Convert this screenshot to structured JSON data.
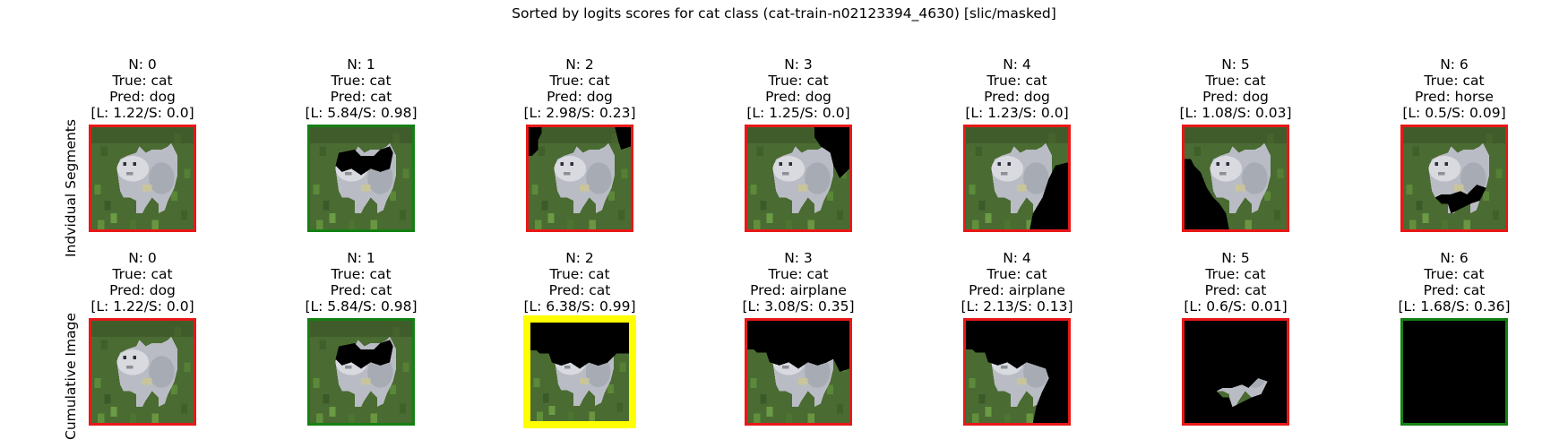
{
  "figure": {
    "title": "Sorted by logits scores for cat class (cat-train-n02123394_4630) [slic/masked]"
  },
  "rows": [
    {
      "label": "Indvidual Segments",
      "panels": [
        {
          "n": "N: 0",
          "true": "True: cat",
          "pred": "Pred: dog",
          "score": "[L: 1.22/S: 0.0]",
          "frame_color": "#e81818",
          "mask": "none"
        },
        {
          "n": "N: 1",
          "true": "True: cat",
          "pred": "Pred: cat",
          "score": "[L: 5.84/S: 0.98]",
          "frame_color": "#148014",
          "mask": "seg1"
        },
        {
          "n": "N: 2",
          "true": "True: cat",
          "pred": "Pred: dog",
          "score": "[L: 2.98/S: 0.23]",
          "frame_color": "#e81818",
          "mask": "seg2"
        },
        {
          "n": "N: 3",
          "true": "True: cat",
          "pred": "Pred: dog",
          "score": "[L: 1.25/S: 0.0]",
          "frame_color": "#e81818",
          "mask": "seg3"
        },
        {
          "n": "N: 4",
          "true": "True: cat",
          "pred": "Pred: dog",
          "score": "[L: 1.23/S: 0.0]",
          "frame_color": "#e81818",
          "mask": "seg4"
        },
        {
          "n": "N: 5",
          "true": "True: cat",
          "pred": "Pred: dog",
          "score": "[L: 1.08/S: 0.03]",
          "frame_color": "#e81818",
          "mask": "seg5"
        },
        {
          "n": "N: 6",
          "true": "True: cat",
          "pred": "Pred: horse",
          "score": "[L: 0.5/S: 0.09]",
          "frame_color": "#e81818",
          "mask": "seg6"
        }
      ]
    },
    {
      "label": "Cumulative Image",
      "panels": [
        {
          "n": "N: 0",
          "true": "True: cat",
          "pred": "Pred: dog",
          "score": "[L: 1.22/S: 0.0]",
          "frame_color": "#e81818",
          "mask": "none"
        },
        {
          "n": "N: 1",
          "true": "True: cat",
          "pred": "Pred: cat",
          "score": "[L: 5.84/S: 0.98]",
          "frame_color": "#148014",
          "mask": "seg1"
        },
        {
          "n": "N: 2",
          "true": "True: cat",
          "pred": "Pred: cat",
          "score": "[L: 6.38/S: 0.99]",
          "frame_color": "#ffff00",
          "frame_style": "highlight",
          "mask": "cum2"
        },
        {
          "n": "N: 3",
          "true": "True: cat",
          "pred": "Pred: airplane",
          "score": "[L: 3.08/S: 0.35]",
          "frame_color": "#e81818",
          "mask": "cum3"
        },
        {
          "n": "N: 4",
          "true": "True: cat",
          "pred": "Pred: airplane",
          "score": "[L: 2.13/S: 0.13]",
          "frame_color": "#e81818",
          "mask": "cum4"
        },
        {
          "n": "N: 5",
          "true": "True: cat",
          "pred": "Pred: cat",
          "score": "[L: 0.6/S: 0.01]",
          "frame_color": "#e81818",
          "mask": "cum5"
        },
        {
          "n": "N: 6",
          "true": "True: cat",
          "pred": "Pred: cat",
          "score": "[L: 1.68/S: 0.36]",
          "frame_color": "#148014",
          "mask": "full"
        }
      ]
    }
  ]
}
